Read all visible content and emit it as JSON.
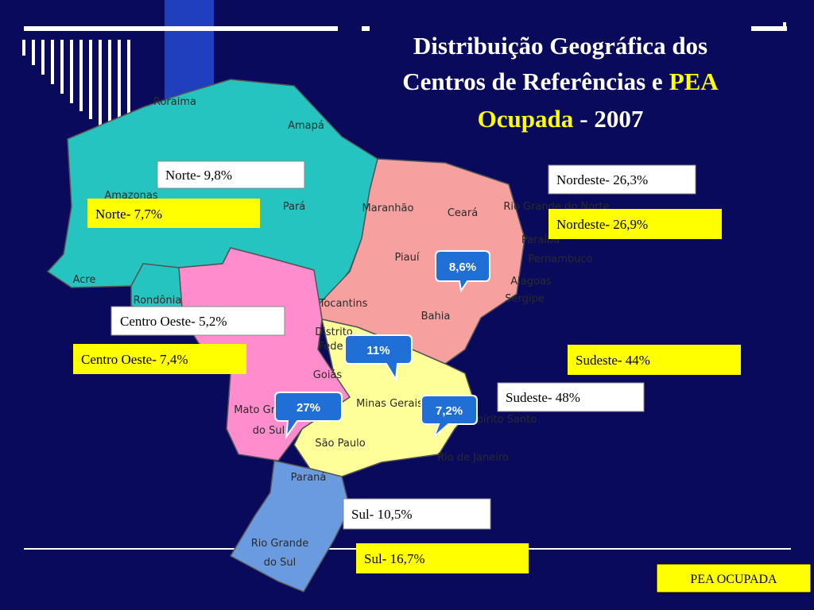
{
  "title": {
    "line1": "Distribuição Geográfica dos",
    "line2": "Centros de Referências e",
    "highlight1": "PEA",
    "highlight2": "Ocupada",
    "suffix": "- 2007"
  },
  "map_labels": [
    "Roraima",
    "Amapá",
    "Amazonas",
    "Pará",
    "Maranhão",
    "Ceará",
    "Rio Grande do Norte",
    "Paraíba",
    "Pernambuco",
    "Alagoas",
    "Sergipe",
    "Piauí",
    "Bahia",
    "Acre",
    "Rondônia",
    "Tocantins",
    "Distrito",
    "Fede",
    "Goiás",
    "Mato Gro",
    "do Sul",
    "Minas Gerais",
    "Espírito Santo",
    "São Paulo",
    "Rio de Janeiro",
    "Paraná",
    "Rio Grande",
    "do Sul"
  ],
  "white_boxes": [
    "Norte- 9,8%",
    "Nordeste- 26,3%",
    "Centro Oeste- 5,2%",
    "Sudeste- 48%",
    "Sul- 10,5%"
  ],
  "yellow_boxes": [
    "Norte- 7,7%",
    "Nordeste- 26,9%",
    "Centro Oeste- 7,4%",
    "Sudeste- 44%",
    "Sul- 16,7%"
  ],
  "bubbles": [
    "8,6%",
    "11%",
    "27%",
    "7,2%"
  ],
  "legend": "PEA OCUPADA"
}
